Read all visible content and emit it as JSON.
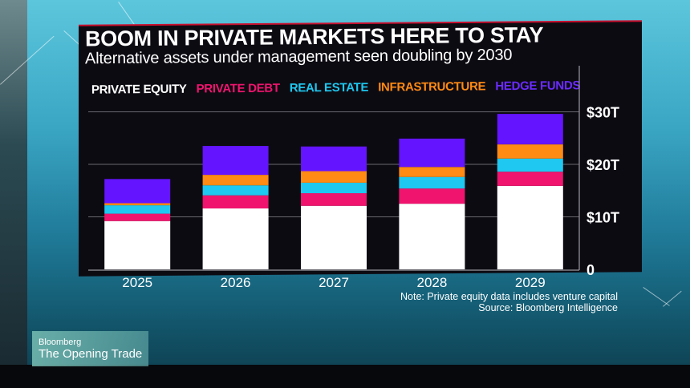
{
  "broadcast": {
    "brand": "Bloomberg",
    "show": "The Opening Trade"
  },
  "colors": {
    "private_equity": "#ffffff",
    "private_debt": "#f0146e",
    "real_estate": "#1ec8f0",
    "infrastructure": "#ff8a14",
    "hedge_funds": "#6414ff",
    "accent_red": "#c8102e"
  },
  "footer": {
    "note": "Note: Private equity data includes venture capital",
    "source": "Source: Bloomberg Intelligence"
  },
  "chart_data": {
    "type": "bar",
    "stacked": true,
    "title": "BOOM IN PRIVATE MARKETS HERE TO STAY",
    "subtitle": "Alternative assets under management seen doubling by 2030",
    "xlabel": "",
    "ylabel": "",
    "categories": [
      "2025",
      "2026",
      "2027",
      "2028",
      "2029"
    ],
    "series": [
      {
        "name": "PRIVATE EQUITY",
        "color": "#ffffff",
        "values": [
          9.2,
          11.6,
          12.1,
          12.5,
          15.9
        ]
      },
      {
        "name": "PRIVATE DEBT",
        "color": "#f0146e",
        "values": [
          1.4,
          2.5,
          2.4,
          2.9,
          2.7
        ]
      },
      {
        "name": "REAL ESTATE",
        "color": "#1ec8f0",
        "values": [
          1.6,
          1.9,
          2.0,
          2.2,
          2.5
        ]
      },
      {
        "name": "INFRASTRUCTURE",
        "color": "#ff8a14",
        "values": [
          0.4,
          2.0,
          2.2,
          1.9,
          2.7
        ]
      },
      {
        "name": "HEDGE FUNDS",
        "color": "#6414ff",
        "values": [
          4.6,
          5.5,
          4.7,
          5.4,
          5.8
        ]
      }
    ],
    "yticks": [
      {
        "value": 0,
        "label": "0"
      },
      {
        "value": 10,
        "label": "$10T"
      },
      {
        "value": 20,
        "label": "$20T"
      },
      {
        "value": 30,
        "label": "$30T"
      }
    ],
    "ylim": [
      0,
      33
    ],
    "grid": true,
    "legend_position": "top",
    "axis_side": "right",
    "notes": [
      "Note: Private equity data includes venture capital",
      "Source: Bloomberg Intelligence"
    ]
  }
}
